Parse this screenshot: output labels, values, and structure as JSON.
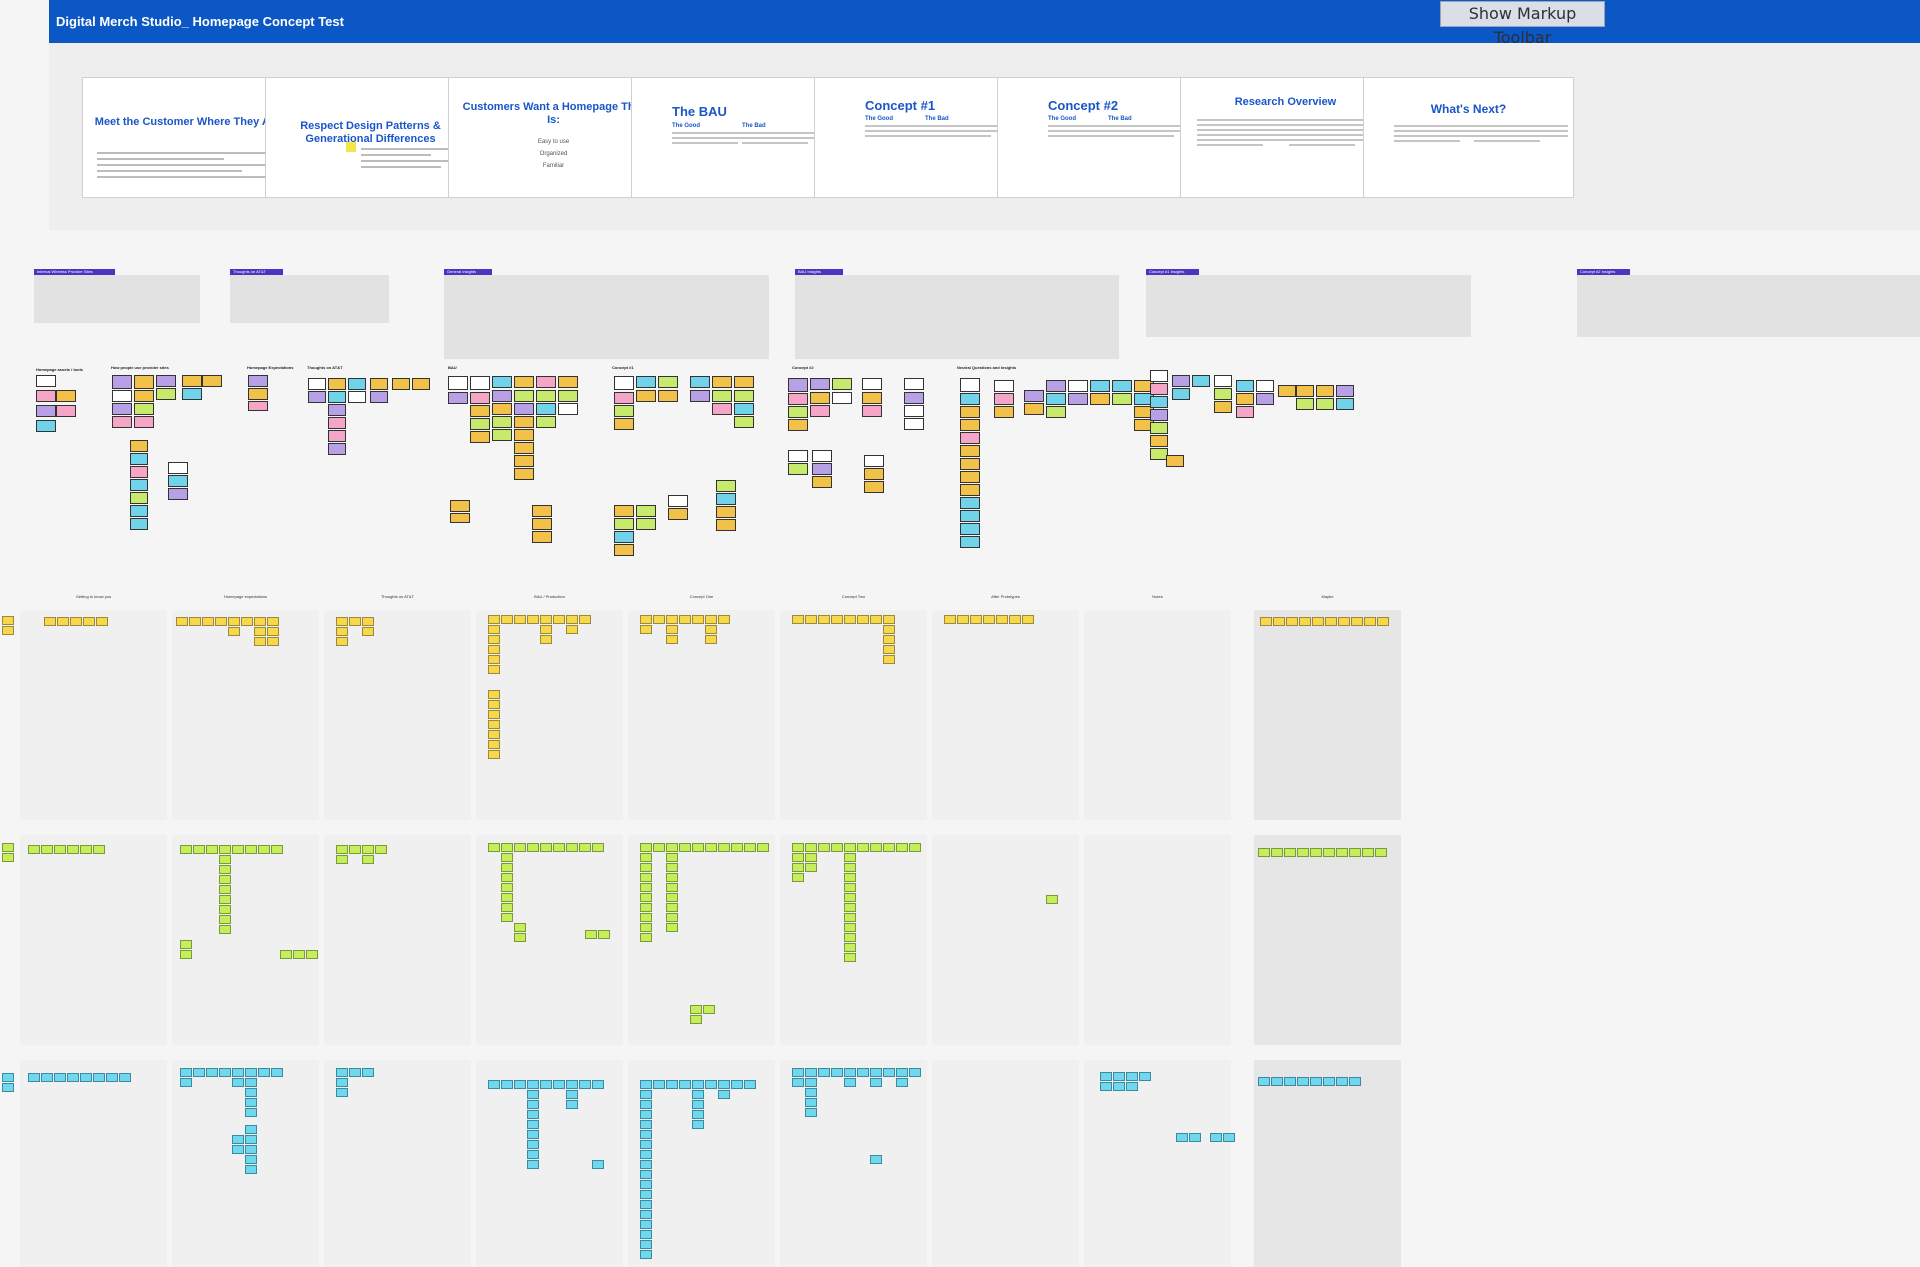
{
  "board": {
    "title": "Digital Merch Studio_ Homepage Concept Test",
    "markup_button": "Show Markup Toolbar"
  },
  "slides": [
    {
      "title": "Meet the Customer Where They Are"
    },
    {
      "title": "Respect Design Patterns & Generational Differences"
    },
    {
      "title": "Customers Want a Homepage That Is:",
      "items": [
        "Easy to use",
        "Organized",
        "Familiar"
      ]
    },
    {
      "title": "The BAU",
      "left": "The Good",
      "right": "The Bad"
    },
    {
      "title": "Concept #1",
      "left": "The Good",
      "right": "The Bad"
    },
    {
      "title": "Concept #2",
      "left": "The Good",
      "right": "The Bad"
    },
    {
      "title": "Research Overview"
    },
    {
      "title": "What's Next?"
    }
  ],
  "insight_panels": [
    {
      "header": "Internal Wireless Provider Sites"
    },
    {
      "header": "Thoughts on AT&T"
    },
    {
      "header": "General Insights"
    },
    {
      "header": "BAU Insights"
    },
    {
      "header": "Concept #1 Insights"
    },
    {
      "header": "Concept #2 Insights"
    }
  ],
  "cluster_labels": [
    "Homepage assets / tools",
    "How people use provider sites",
    "Homepage Expectations",
    "Thoughts on AT&T",
    "BAU",
    "Concept #1",
    "Concept #2",
    "Neutral Questions and Insights"
  ],
  "lane_columns": [
    "Getting to know you",
    "Homepage expectations",
    "Thoughts on AT&T",
    "BAU / Production",
    "Concept One",
    "Concept Two",
    "After Prototypes",
    "Notes",
    "Maybe"
  ],
  "colors": {
    "header_blue": "#0b57c5",
    "slide_title_blue": "#1a56c9",
    "insight_header_purple": "#4f32c2",
    "sticky_yellow": "#f7d84a",
    "sticky_green": "#c6ee5b",
    "sticky_blue": "#6fd8ef"
  }
}
